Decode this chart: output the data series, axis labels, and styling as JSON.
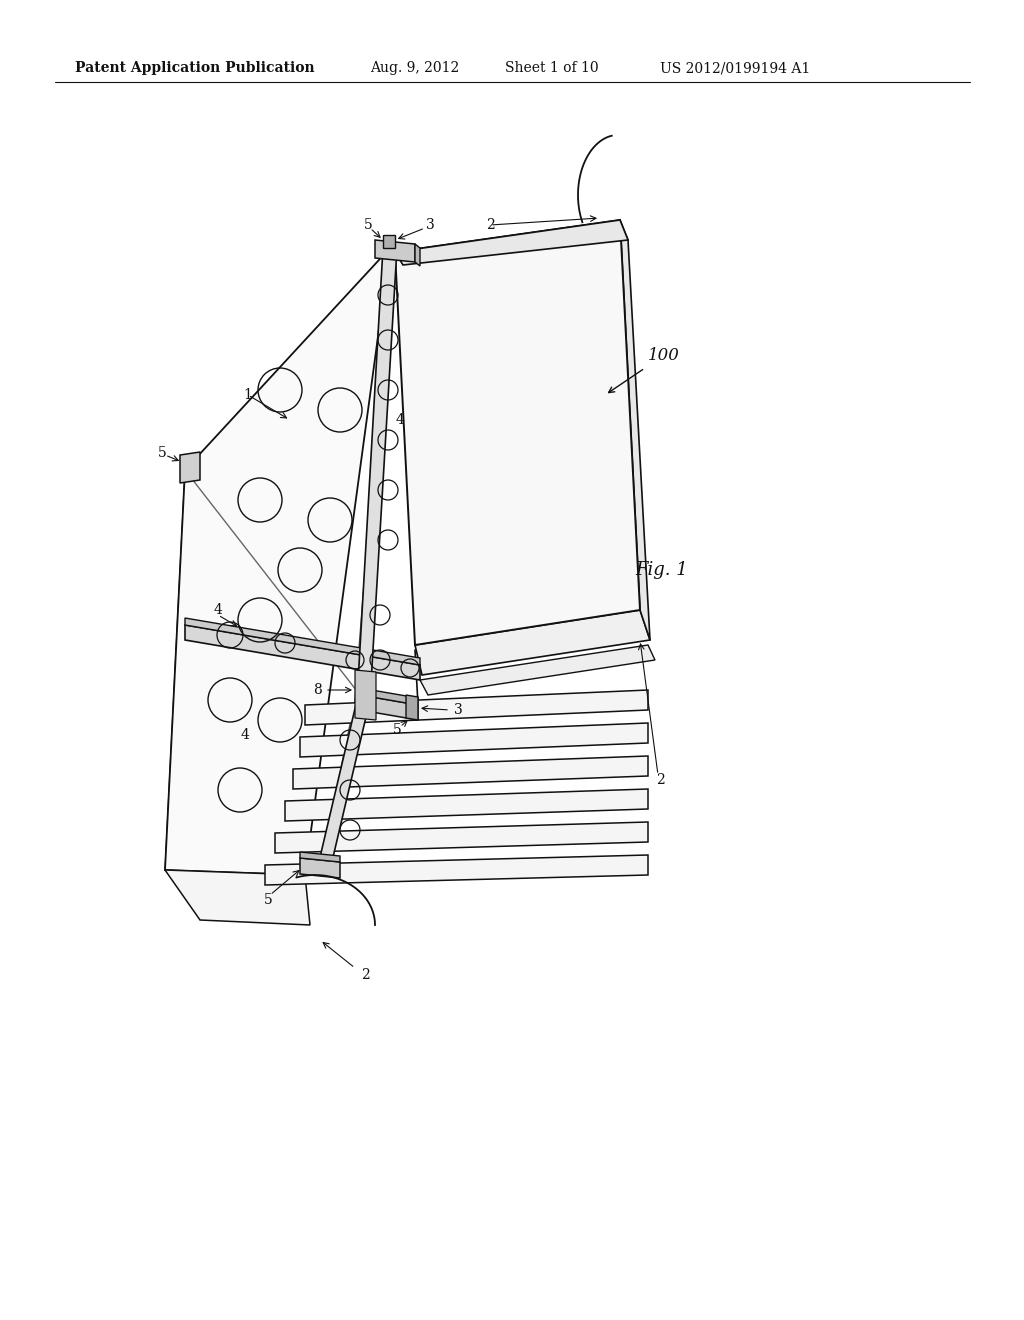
{
  "bg_color": "#ffffff",
  "line_color": "#111111",
  "header_text": "Patent Application Publication",
  "header_date": "Aug. 9, 2012",
  "header_sheet": "Sheet 1 of 10",
  "header_patent": "US 2012/0199194 A1",
  "fig_label": "Fig. 1",
  "assembly_label": "100",
  "figsize": [
    10.24,
    13.2
  ],
  "dpi": 100
}
